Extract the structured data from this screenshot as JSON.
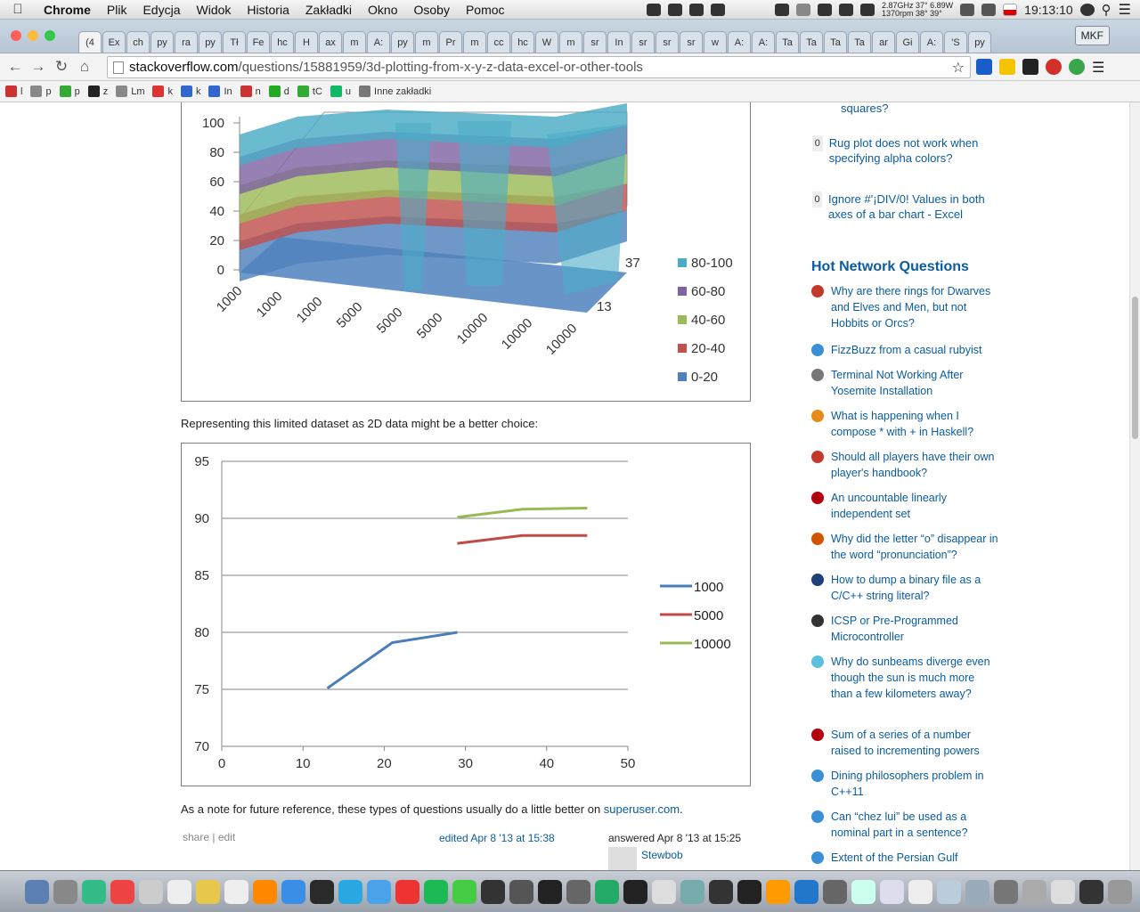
{
  "menubar": {
    "app": "Chrome",
    "items": [
      "Plik",
      "Edycja",
      "Widok",
      "Historia",
      "Zakładki",
      "Okno",
      "Osoby",
      "Pomoc"
    ],
    "cpu": "2.87GHz",
    "temp1": "37°",
    "power": "6.89W",
    "rpm": "1370rpm",
    "temp2": "38°",
    "temp3": "39°",
    "clock": "19:13:10"
  },
  "tabs": [
    "(4",
    "Ex",
    "ch",
    "py",
    "ra",
    "py",
    "Tł",
    "Fe",
    "hc",
    "H",
    "ax",
    "m",
    "A:",
    "py",
    "m",
    "Pr",
    "m",
    "cc",
    "hc",
    "W",
    "m",
    "sr",
    "In",
    "sr",
    "sr",
    "sr",
    "w",
    "A:",
    "A:",
    "Ta",
    "Ta",
    "Ta",
    "Ta",
    "ar",
    "Gi",
    "A:",
    "'S",
    "py"
  ],
  "profile": "MKF",
  "omnibox": {
    "host": "stackoverflow.com",
    "path": "/questions/15881959/3d-plotting-from-x-y-z-data-excel-or-other-tools"
  },
  "bookmarks": [
    "l",
    "p",
    "p",
    "z",
    "Lm",
    "k",
    "k",
    "In",
    "n",
    "d",
    "tC",
    "u",
    "Inne zakładki"
  ],
  "chart3d": {
    "yticks": [
      "100",
      "80",
      "60",
      "40",
      "20",
      "0"
    ],
    "xticks": [
      "1000",
      "1000",
      "1000",
      "5000",
      "5000",
      "5000",
      "10000",
      "10000",
      "10000"
    ],
    "zticks": [
      "37",
      "13"
    ],
    "legend": [
      "80-100",
      "60-80",
      "40-60",
      "20-40",
      "0-20"
    ],
    "colors": [
      "#4bacc6",
      "#8064a2",
      "#9bbb59",
      "#c0504d",
      "#4f81bd"
    ]
  },
  "text_2d": "Representing this limited dataset as 2D data might be a better choice:",
  "chart_data": {
    "type": "line",
    "x_range": [
      0,
      50
    ],
    "ylim": [
      70,
      95
    ],
    "xticks": [
      0,
      10,
      20,
      30,
      40,
      50
    ],
    "yticks": [
      95,
      90,
      85,
      80,
      75,
      70
    ],
    "grid": "horizontal",
    "legend_position": "right",
    "series": [
      {
        "name": "1000",
        "color": "#4a7ebb",
        "x": [
          13,
          21,
          29
        ],
        "y": [
          75.1,
          79.1,
          80
        ]
      },
      {
        "name": "5000",
        "color": "#be4b48",
        "x": [
          29,
          37,
          45
        ],
        "y": [
          87.8,
          88.5,
          88.5
        ]
      },
      {
        "name": "10000",
        "color": "#98b954",
        "x": [
          29,
          37,
          45
        ],
        "y": [
          90.1,
          90.8,
          90.9
        ]
      }
    ]
  },
  "note": {
    "prefix": "As a note for future reference, these types of questions usually do a little better on ",
    "link": "superuser.com",
    "suffix": "."
  },
  "post_menu": {
    "share": "share",
    "edit": "edit",
    "edited": "edited Apr 8 '13 at 15:38",
    "answered": "answered Apr 8 '13 at 15:25",
    "user": "Stewbob"
  },
  "related": [
    {
      "votes": "",
      "title": "squares?"
    },
    {
      "votes": "0",
      "title": "Rug plot does not work when specifying alpha colors?"
    },
    {
      "votes": "0",
      "title": "Ignore #'¡DIV/0! Values in both axes of a bar chart - Excel"
    }
  ],
  "hot_title": "Hot Network Questions",
  "hot": [
    {
      "t": "Why are there rings for Dwarves and Elves and Men, but not Hobbits or Orcs?",
      "c": "#c0392b"
    },
    {
      "t": "FizzBuzz from a casual rubyist",
      "c": "#3b8fd6"
    },
    {
      "t": "Terminal Not Working After Yosemite Installation",
      "c": "#777"
    },
    {
      "t": "What is happening when I compose * with + in Haskell?",
      "c": "#e8891c"
    },
    {
      "t": "Should all players have their own player's handbook?",
      "c": "#c0392b"
    },
    {
      "t": "An uncountable linearly independent set",
      "c": "#b3000f"
    },
    {
      "t": "Why did the letter “o” disappear in the word “pronunciation”?",
      "c": "#d35400"
    },
    {
      "t": "How to dump a binary file as a C/C++ string literal?",
      "c": "#1d3f7a"
    },
    {
      "t": "ICSP or Pre-Programmed Microcontroller",
      "c": "#333"
    },
    {
      "t": "Why do sunbeams diverge even though the sun is much more than a few kilometers away?",
      "c": "#5bc0de"
    },
    {
      "t": "Sum of a series of a number raised to incrementing powers",
      "c": "#b3000f"
    },
    {
      "t": "Dining philosophers problem in C++11",
      "c": "#3b8fd6"
    },
    {
      "t": "Can “chez lui” be used as a nominal part in a sentence?",
      "c": "#3b8fd6"
    },
    {
      "t": "Extent of the Persian Gulf",
      "c": "#3b8fd6"
    }
  ]
}
